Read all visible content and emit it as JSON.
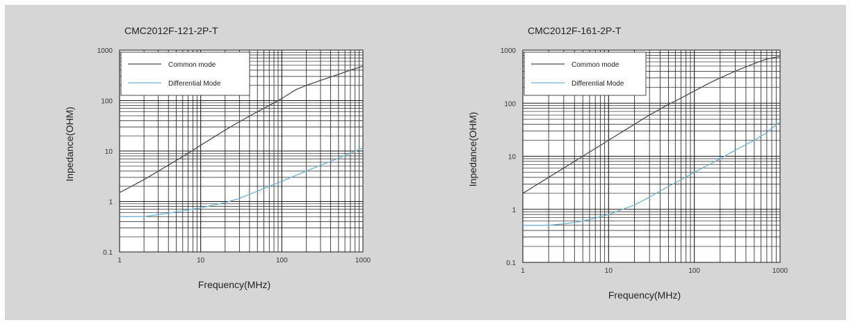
{
  "colors": {
    "background": "#d6d6d6",
    "plot_area": "#ffffff",
    "grid": "#1a1a1a",
    "common_mode": "#4a4a4a",
    "differential_mode": "#6fb3cf"
  },
  "chart_data": [
    {
      "type": "line",
      "title": "CMC2012F-121-2P-T",
      "xlabel": "Frequency(MHz)",
      "ylabel": "Inpedance(OHM)",
      "x_scale": "log",
      "y_scale": "log",
      "xlim": [
        1,
        1000
      ],
      "ylim": [
        0.1,
        1000
      ],
      "xticks": [
        "1",
        "10",
        "100",
        "1000"
      ],
      "yticks": [
        "0.1",
        "1",
        "10",
        "100",
        "1000"
      ],
      "grid": true,
      "legend_position": "top-left",
      "series": [
        {
          "name": "Common mode",
          "color": "#4a4a4a",
          "x": [
            1,
            2,
            3,
            5,
            7,
            10,
            20,
            30,
            50,
            70,
            100,
            150,
            200,
            300,
            500,
            700,
            1000
          ],
          "y": [
            1.5,
            2.7,
            4.0,
            6.5,
            9.0,
            13,
            26,
            38,
            60,
            80,
            110,
            165,
            200,
            250,
            330,
            400,
            480
          ]
        },
        {
          "name": "Differential Mode",
          "color": "#6fb3cf",
          "x": [
            1,
            2,
            3,
            5,
            7,
            10,
            20,
            30,
            50,
            70,
            100,
            150,
            200,
            300,
            500,
            700,
            1000
          ],
          "y": [
            0.5,
            0.5,
            0.55,
            0.62,
            0.68,
            0.75,
            0.95,
            1.15,
            1.6,
            2.0,
            2.5,
            3.3,
            4.0,
            5.2,
            7.2,
            9.0,
            11.5
          ]
        }
      ]
    },
    {
      "type": "line",
      "title": "CMC2012F-161-2P-T",
      "xlabel": "Frequency(MHz)",
      "ylabel": "Inpedance(OHM)",
      "x_scale": "log",
      "y_scale": "log",
      "xlim": [
        1,
        1000
      ],
      "ylim": [
        0.1,
        1000
      ],
      "xticks": [
        "1",
        "10",
        "100",
        "1000"
      ],
      "yticks": [
        "0.1",
        "1",
        "10",
        "100",
        "1000"
      ],
      "grid": true,
      "legend_position": "top-left",
      "series": [
        {
          "name": "Common mode",
          "color": "#4a4a4a",
          "x": [
            1,
            2,
            3,
            5,
            7,
            10,
            20,
            30,
            50,
            70,
            100,
            150,
            200,
            300,
            500,
            700,
            1000
          ],
          "y": [
            2.0,
            4.0,
            6.0,
            10,
            14,
            20,
            40,
            60,
            95,
            125,
            170,
            240,
            300,
            400,
            560,
            680,
            760
          ]
        },
        {
          "name": "Differential Mode",
          "color": "#6fb3cf",
          "x": [
            1,
            2,
            3,
            5,
            7,
            10,
            20,
            30,
            50,
            70,
            100,
            150,
            200,
            300,
            500,
            700,
            1000
          ],
          "y": [
            0.5,
            0.5,
            0.53,
            0.6,
            0.68,
            0.8,
            1.2,
            1.7,
            2.7,
            3.6,
            5.0,
            7.0,
            9.0,
            13,
            20,
            28,
            45
          ]
        }
      ]
    }
  ]
}
